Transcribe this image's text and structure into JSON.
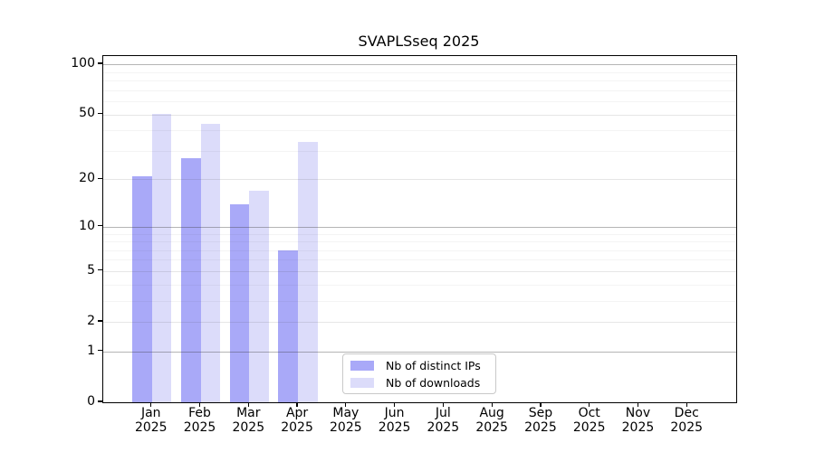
{
  "title": "SVAPLSseq 2025",
  "chart_data": {
    "type": "bar",
    "title": "SVAPLSseq 2025",
    "categories": [
      "Jan 2025",
      "Feb 2025",
      "Mar 2025",
      "Apr 2025",
      "May 2025",
      "Jun 2025",
      "Jul 2025",
      "Aug 2025",
      "Sep 2025",
      "Oct 2025",
      "Nov 2025",
      "Dec 2025"
    ],
    "series": [
      {
        "name": "Nb of distinct IPs",
        "color": "#a9a9f8",
        "values": [
          21,
          27,
          14,
          7,
          null,
          null,
          null,
          null,
          null,
          null,
          null,
          null
        ]
      },
      {
        "name": "Nb of downloads",
        "color": "#dcdcfa",
        "values": [
          50,
          44,
          17,
          34,
          null,
          null,
          null,
          null,
          null,
          null,
          null,
          null
        ]
      }
    ],
    "xlabel": "",
    "ylabel": "",
    "yscale": "log1p",
    "ylim": [
      0,
      112
    ],
    "yticks": [
      0,
      1,
      2,
      5,
      10,
      20,
      50,
      100
    ],
    "grid": {
      "major": [
        1,
        10,
        100
      ],
      "mid": [
        2,
        5,
        20,
        50
      ],
      "minor": [
        3,
        4,
        6,
        7,
        8,
        9,
        30,
        40,
        60,
        70,
        80,
        90
      ]
    },
    "legend_position": "inside-bottom-center",
    "grid_orientation": "horizontal"
  },
  "legend": {
    "items": [
      {
        "label": "Nb of distinct IPs",
        "color": "#a9a9f8"
      },
      {
        "label": "Nb of downloads",
        "color": "#dcdcfa"
      }
    ]
  }
}
